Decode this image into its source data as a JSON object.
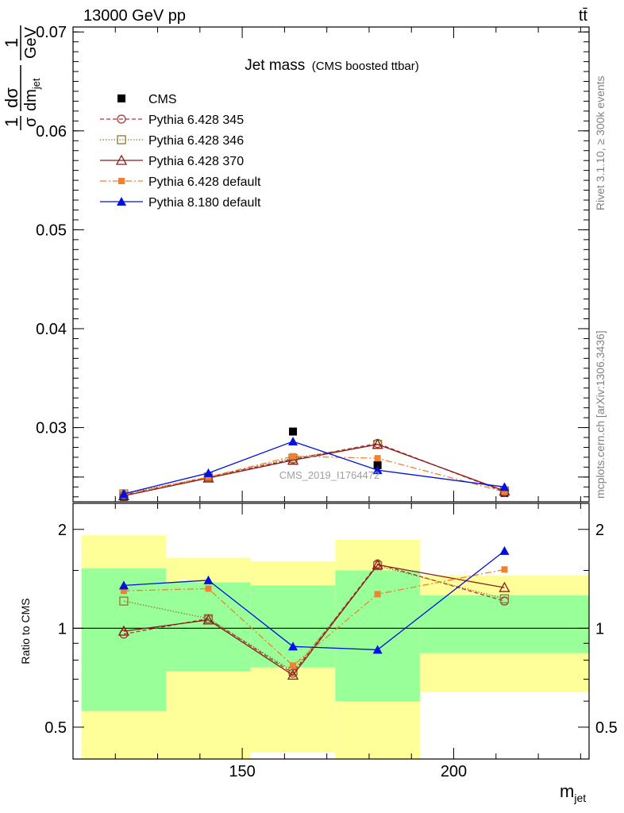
{
  "header": {
    "energy_label": "13000 GeV pp",
    "process_label": "tt̄"
  },
  "side_labels": {
    "rivet": "Rivet 3.1.10, ≥ 300k events",
    "source": "mcplots.cern.ch [arXiv:1306.3436]"
  },
  "watermark": "CMS_2019_I1764472",
  "colors": {
    "cms": "#000000",
    "p345": "#b0303a",
    "p346": "#8f7a2f",
    "p370": "#8b1a1a",
    "p6def": "#f28030",
    "p8def": "#0010e0",
    "band_inner": "#99ff99",
    "band_outer": "#ffff99"
  },
  "chart_data": [
    {
      "type": "line",
      "title": "Jet mass",
      "subtitle": "(CMS boosted ttbar)",
      "ylabel": "1/σ dσ/dm_jet 1/GeV",
      "xlabel": "m_jet",
      "y_tick_labels": [
        "0.03",
        "0.04",
        "0.05",
        "0.06",
        "0.07"
      ],
      "x": [
        122,
        142,
        162,
        182,
        212
      ],
      "xlim": [
        110,
        232
      ],
      "ylim": [
        0.0225,
        0.0705
      ],
      "legend_position": "top-left",
      "series": [
        {
          "name": "CMS",
          "key": "cms",
          "values": [
            0.023,
            0.0249,
            0.0296,
            0.0262,
            0.0234
          ],
          "marker": "square"
        },
        {
          "name": "Pythia 6.428 345",
          "key": "p345",
          "values": [
            0.0232,
            0.025,
            0.0268,
            0.0284,
            0.0235
          ],
          "marker": "open-circle"
        },
        {
          "name": "Pythia 6.428 346",
          "key": "p346",
          "values": [
            0.0233,
            0.025,
            0.0269,
            0.0283,
            0.0236
          ],
          "marker": "open-square"
        },
        {
          "name": "Pythia 6.428 370",
          "key": "p370",
          "values": [
            0.0231,
            0.0249,
            0.0267,
            0.0283,
            0.0236
          ],
          "marker": "open-triangle"
        },
        {
          "name": "Pythia 6.428 default",
          "key": "p6def",
          "values": [
            0.0232,
            0.025,
            0.0271,
            0.0269,
            0.0235
          ],
          "marker": "filled-square"
        },
        {
          "name": "Pythia 8.180 default",
          "key": "p8def",
          "values": [
            0.0233,
            0.0254,
            0.0286,
            0.0257,
            0.024
          ],
          "marker": "filled-triangle"
        }
      ]
    },
    {
      "type": "line",
      "ylabel": "Ratio to CMS",
      "xlabel": "m_jet",
      "y_tick_labels": [
        "0.5",
        "1",
        "2"
      ],
      "x_tick_labels": [
        "150",
        "200"
      ],
      "x_ticks": [
        150,
        200
      ],
      "y_ticks": [
        0.5,
        1,
        2
      ],
      "xlim": [
        110,
        232
      ],
      "ylim": [
        0.4,
        2.4
      ],
      "reference_line": 1,
      "bins": [
        {
          "x0": 112,
          "x1": 132,
          "inner": [
            0.56,
            1.52
          ],
          "outer": [
            0.35,
            1.92
          ]
        },
        {
          "x0": 132,
          "x1": 152,
          "inner": [
            0.74,
            1.38
          ],
          "outer": [
            0.35,
            1.64
          ]
        },
        {
          "x0": 152,
          "x1": 172,
          "inner": [
            0.76,
            1.35
          ],
          "outer": [
            0.42,
            1.6
          ]
        },
        {
          "x0": 172,
          "x1": 192,
          "inner": [
            0.6,
            1.5
          ],
          "outer": [
            0.35,
            1.86
          ]
        },
        {
          "x0": 192,
          "x1": 232,
          "inner": [
            0.84,
            1.26
          ],
          "outer": [
            0.64,
            1.45
          ]
        }
      ],
      "series": [
        {
          "name": "Pythia 6.428 345",
          "key": "p345",
          "values": [
            0.96,
            1.07,
            0.73,
            1.57,
            1.21
          ]
        },
        {
          "name": "Pythia 6.428 346",
          "key": "p346",
          "values": [
            1.21,
            1.07,
            0.74,
            1.55,
            1.23
          ]
        },
        {
          "name": "Pythia 6.428 370",
          "key": "p370",
          "values": [
            0.98,
            1.06,
            0.72,
            1.56,
            1.33
          ]
        },
        {
          "name": "Pythia 6.428 default",
          "key": "p6def",
          "values": [
            1.3,
            1.32,
            0.77,
            1.27,
            1.51
          ]
        },
        {
          "name": "Pythia 8.180 default",
          "key": "p8def",
          "values": [
            1.35,
            1.4,
            0.88,
            0.86,
            1.72
          ]
        }
      ]
    }
  ]
}
